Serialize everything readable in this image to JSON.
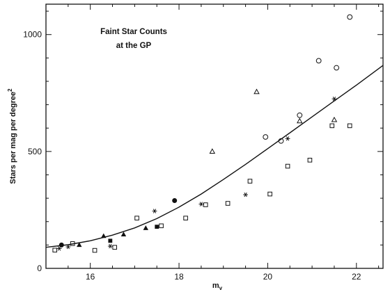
{
  "chart_data": {
    "type": "scatter",
    "title_lines": [
      "Faint Star Counts",
      "at the GP"
    ],
    "xlabel": "m",
    "xlabel_sub": "v",
    "ylabel": "Stars per mag per degree",
    "ylabel_sup": "2",
    "xlim": [
      15.0,
      22.6
    ],
    "ylim": [
      0,
      1130
    ],
    "x_ticks": [
      16,
      18,
      20,
      22
    ],
    "y_ticks": [
      0,
      500,
      1000
    ],
    "grid": false,
    "series": [
      {
        "marker": "open-square",
        "points": [
          [
            15.2,
            78
          ],
          [
            15.6,
            106
          ],
          [
            16.1,
            77
          ],
          [
            16.55,
            90
          ],
          [
            17.05,
            215
          ],
          [
            17.6,
            182
          ],
          [
            18.15,
            215
          ],
          [
            18.6,
            272
          ],
          [
            19.1,
            278
          ],
          [
            19.6,
            373
          ],
          [
            20.05,
            318
          ],
          [
            20.45,
            437
          ],
          [
            20.95,
            463
          ],
          [
            21.45,
            610
          ],
          [
            21.85,
            610
          ]
        ]
      },
      {
        "marker": "open-circle",
        "points": [
          [
            19.95,
            562
          ],
          [
            20.3,
            545
          ],
          [
            20.72,
            655
          ],
          [
            21.15,
            888
          ],
          [
            21.55,
            858
          ],
          [
            21.85,
            1075
          ]
        ]
      },
      {
        "marker": "filled-circle",
        "points": [
          [
            15.35,
            100
          ],
          [
            17.9,
            290
          ]
        ]
      },
      {
        "marker": "filled-square",
        "points": [
          [
            16.45,
            118
          ],
          [
            17.5,
            178
          ]
        ]
      },
      {
        "marker": "filled-triangle",
        "points": [
          [
            15.75,
            100
          ],
          [
            16.3,
            138
          ],
          [
            16.75,
            145
          ],
          [
            17.25,
            172
          ]
        ]
      },
      {
        "marker": "open-triangle",
        "points": [
          [
            18.75,
            500
          ],
          [
            19.75,
            755
          ],
          [
            20.72,
            630
          ],
          [
            21.5,
            635
          ]
        ]
      },
      {
        "marker": "asterisk",
        "points": [
          [
            15.3,
            85
          ],
          [
            15.5,
            92
          ],
          [
            16.45,
            95
          ],
          [
            17.45,
            245
          ],
          [
            18.5,
            275
          ],
          [
            19.5,
            315
          ],
          [
            20.45,
            555
          ],
          [
            21.5,
            725
          ]
        ]
      }
    ],
    "fit_curve": {
      "x": [
        15.0,
        15.5,
        16.0,
        16.5,
        17.0,
        17.5,
        18.0,
        18.5,
        19.0,
        19.5,
        20.0,
        20.5,
        21.0,
        21.5,
        22.0,
        22.6
      ],
      "y": [
        90,
        101,
        118,
        142,
        173,
        213,
        262,
        318,
        380,
        445,
        512,
        580,
        648,
        716,
        784,
        868
      ]
    }
  }
}
